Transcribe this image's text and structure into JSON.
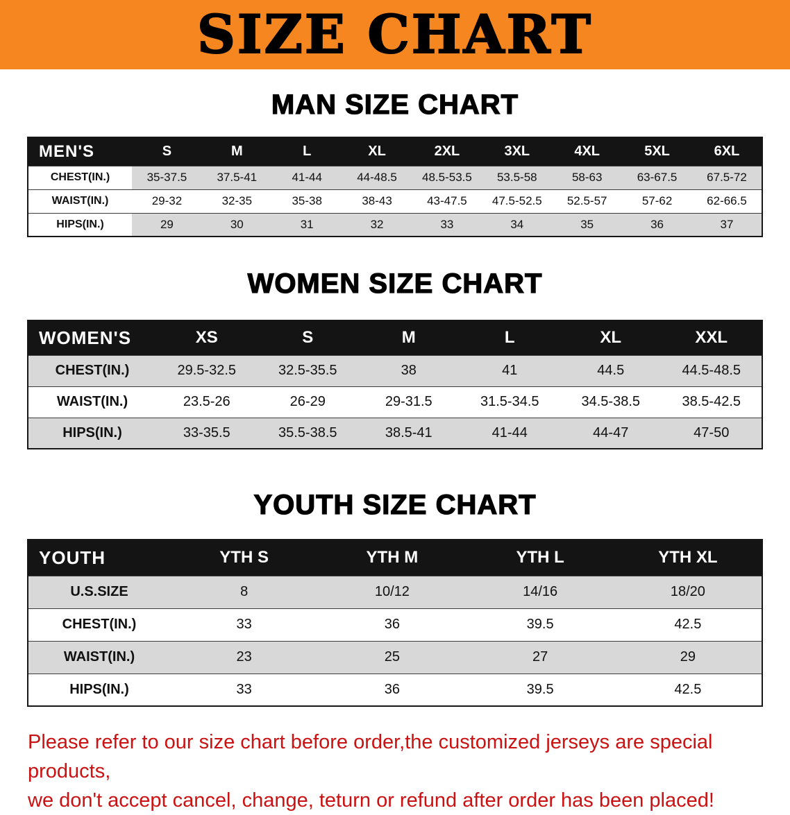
{
  "banner": {
    "title": "SIZE CHART",
    "bg_color": "#f6861f",
    "text_color": "#000000"
  },
  "sections": [
    {
      "heading": "MAN SIZE CHART",
      "table": {
        "header": [
          "MEN'S",
          "S",
          "M",
          "L",
          "XL",
          "2XL",
          "3XL",
          "4XL",
          "5XL",
          "6XL"
        ],
        "rows": [
          [
            "CHEST(IN.)",
            "35-37.5",
            "37.5-41",
            "41-44",
            "44-48.5",
            "48.5-53.5",
            "53.5-58",
            "58-63",
            "63-67.5",
            "67.5-72"
          ],
          [
            "WAIST(IN.)",
            "29-32",
            "32-35",
            "35-38",
            "38-43",
            "43-47.5",
            "47.5-52.5",
            "52.5-57",
            "57-62",
            "62-66.5"
          ],
          [
            "HIPS(IN.)",
            "29",
            "30",
            "31",
            "32",
            "33",
            "34",
            "35",
            "36",
            "37"
          ]
        ]
      }
    },
    {
      "heading": "WOMEN SIZE CHART",
      "table": {
        "header": [
          "WOMEN'S",
          "XS",
          "S",
          "M",
          "L",
          "XL",
          "XXL"
        ],
        "rows": [
          [
            "CHEST(IN.)",
            "29.5-32.5",
            "32.5-35.5",
            "38",
            "41",
            "44.5",
            "44.5-48.5"
          ],
          [
            "WAIST(IN.)",
            "23.5-26",
            "26-29",
            "29-31.5",
            "31.5-34.5",
            "34.5-38.5",
            "38.5-42.5"
          ],
          [
            "HIPS(IN.)",
            "33-35.5",
            "35.5-38.5",
            "38.5-41",
            "41-44",
            "44-47",
            "47-50"
          ]
        ]
      }
    },
    {
      "heading": "YOUTH SIZE CHART",
      "table": {
        "header": [
          "YOUTH",
          "YTH S",
          "YTH M",
          "YTH L",
          "YTH XL"
        ],
        "rows": [
          [
            "U.S.SIZE",
            "8",
            "10/12",
            "14/16",
            "18/20"
          ],
          [
            "CHEST(IN.)",
            "33",
            "36",
            "39.5",
            "42.5"
          ],
          [
            "WAIST(IN.)",
            "23",
            "25",
            "27",
            "29"
          ],
          [
            "HIPS(IN.)",
            "33",
            "36",
            "39.5",
            "42.5"
          ]
        ]
      }
    }
  ],
  "disclaimer": {
    "lines": [
      "Please refer to our size chart before order,the customized jerseys are special products,",
      "we don't accept cancel, change, teturn or refund after order has been placed!"
    ],
    "color": "#cb1111"
  }
}
